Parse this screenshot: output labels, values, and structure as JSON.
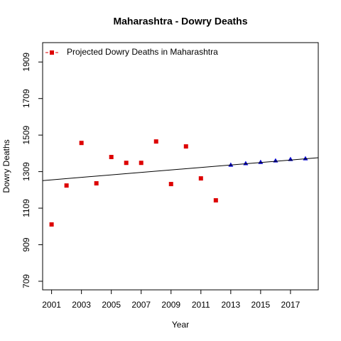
{
  "chart_data": {
    "type": "scatter",
    "title": "Maharashtra  -  Dowry Deaths",
    "x_label": "Year",
    "y_label": "Dowry Deaths",
    "xlim": [
      2000.4,
      2018.86
    ],
    "ylim": [
      662,
      2015
    ],
    "xticks": [
      2001,
      2003,
      2005,
      2007,
      2009,
      2011,
      2013,
      2015,
      2017
    ],
    "yticks": [
      709,
      909,
      1109,
      1309,
      1509,
      1709,
      1909
    ],
    "legend_position": "top-left",
    "series": [
      {
        "name": "Projected  Dowry Deaths  in  Maharashtra",
        "color": "#dd0000",
        "marker": "square",
        "x": [
          2001,
          2002,
          2003,
          2004,
          2005,
          2006,
          2007,
          2008,
          2009,
          2010,
          2011,
          2012
        ],
        "values": [
          1020,
          1233,
          1466,
          1245,
          1389,
          1357,
          1357,
          1474,
          1241,
          1447,
          1272,
          1152
        ]
      },
      {
        "color": "#0000cc",
        "marker": "triangle",
        "x": [
          2013,
          2014,
          2015,
          2016,
          2017,
          2018
        ],
        "values": [
          1346,
          1354,
          1361,
          1369,
          1377,
          1381
        ]
      },
      {
        "color": "#000000",
        "marker": "line",
        "x": [
          2000.4,
          2018.86
        ],
        "values": [
          1260,
          1385
        ]
      }
    ]
  }
}
